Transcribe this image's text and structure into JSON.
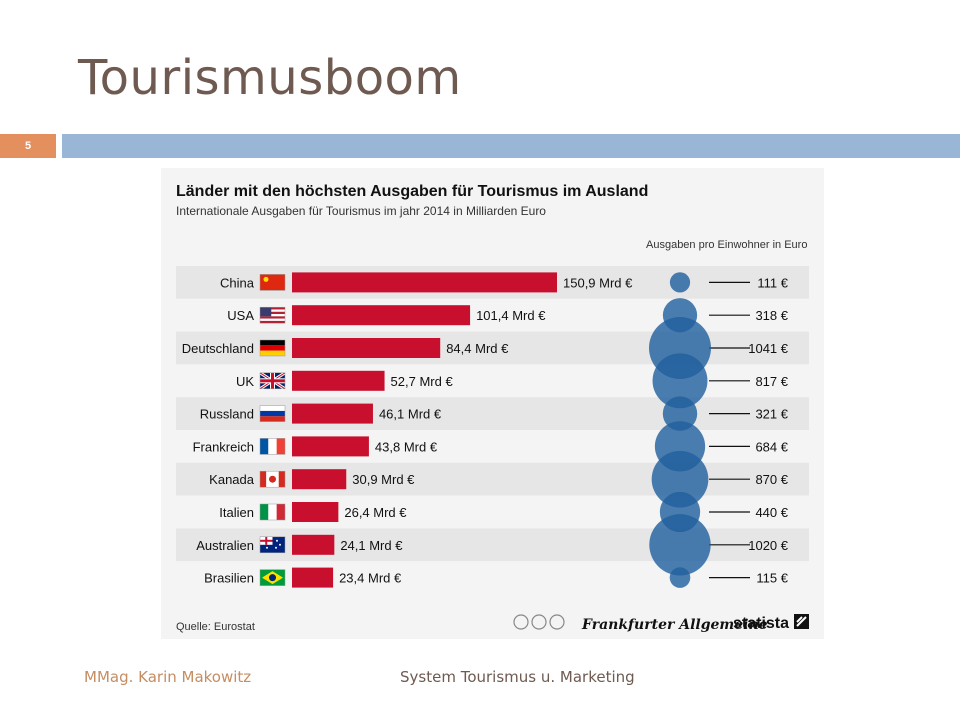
{
  "slide": {
    "title": "Tourismusboom",
    "page_number": "5",
    "footer_author": "MMag. Karin Makowitz",
    "footer_course": "System Tourismus u. Marketing"
  },
  "colors": {
    "bar": "#c8102e",
    "bubble": "#1f5f9e",
    "row_alt": "#e6e6e6"
  },
  "chart_data": {
    "type": "bar",
    "title": "Länder mit den höchsten Ausgaben für Tourismus im Ausland",
    "subtitle": "Internationale Ausgaben für Tourismus im jahr 2014 in Milliarden Euro",
    "categories": [
      "China",
      "USA",
      "Deutschland",
      "UK",
      "Russland",
      "Frankreich",
      "Kanada",
      "Italien",
      "Australien",
      "Brasilien"
    ],
    "values": [
      150.9,
      101.4,
      84.4,
      52.7,
      46.1,
      43.8,
      30.9,
      26.4,
      24.1,
      23.4
    ],
    "value_labels": [
      "150,9 Mrd €",
      "101,4 Mrd €",
      "84,4 Mrd €",
      "52,7 Mrd €",
      "46,1 Mrd €",
      "43,8 Mrd €",
      "30,9 Mrd €",
      "26,4 Mrd €",
      "24,1 Mrd €",
      "23,4 Mrd €"
    ],
    "flags": [
      "china-flag-icon",
      "usa-flag-icon",
      "germany-flag-icon",
      "uk-flag-icon",
      "russia-flag-icon",
      "france-flag-icon",
      "canada-flag-icon",
      "italy-flag-icon",
      "australia-flag-icon",
      "brazil-flag-icon"
    ],
    "per_capita": {
      "label": "Ausgaben pro Einwohner in Euro",
      "values": [
        111,
        318,
        1041,
        817,
        321,
        684,
        870,
        440,
        1020,
        115
      ],
      "value_labels": [
        "111 €",
        "318 €",
        "1041 €",
        "817 €",
        "321 €",
        "684 €",
        "870 €",
        "440 €",
        "1020 €",
        "115 €"
      ]
    },
    "source": "Quelle: Eurostat",
    "brand_faz": "Frankfurter Allgemeine",
    "brand_statista": "statista",
    "xlim": [
      0,
      150.9
    ]
  }
}
